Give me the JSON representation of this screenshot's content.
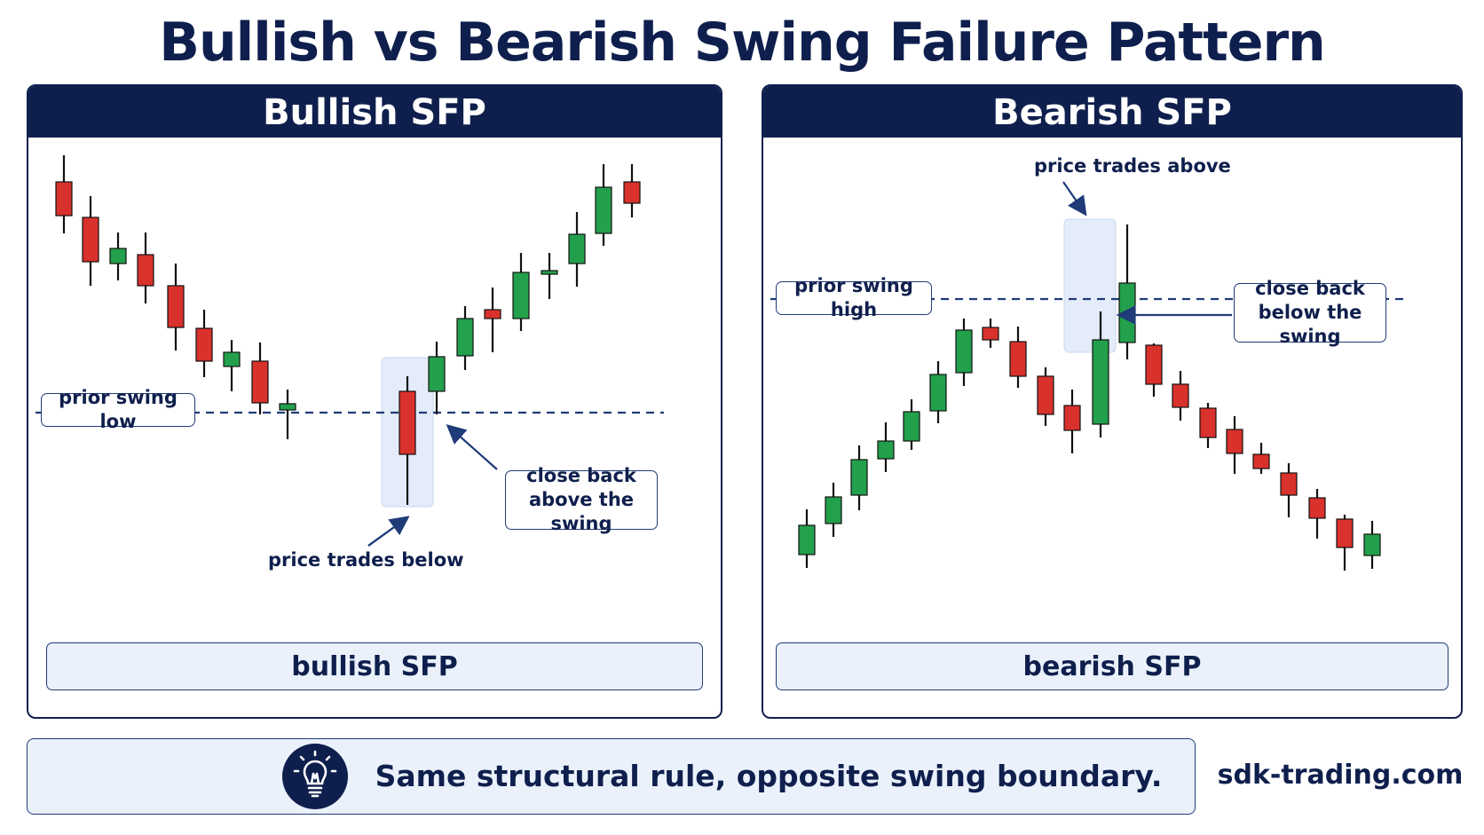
{
  "title": "Bullish vs Bearish Swing Failure Pattern",
  "colors": {
    "navy": "#0f1f4d",
    "bull": "#22a04b",
    "bear": "#d9312b",
    "highlight": "#e3ecf8",
    "dash": "#1f3b78"
  },
  "bullish": {
    "header": "Bullish SFP",
    "level_label": "prior swing low",
    "annotation_close": "close back above the swing",
    "annotation_close_line1": "close back",
    "annotation_close_line2": "above the swing",
    "annotation_wick": "price trades below",
    "footer": "bullish SFP"
  },
  "bearish": {
    "header": "Bearish SFP",
    "level_label": "prior swing high",
    "annotation_close_line1": "close back",
    "annotation_close_line2": "below the swing",
    "annotation_wick": "price trades above",
    "footer": "bearish SFP"
  },
  "bottom_text": "Same structural rule, opposite swing boundary.",
  "icon": "lightbulb-icon",
  "site": "sdk-trading.com"
}
